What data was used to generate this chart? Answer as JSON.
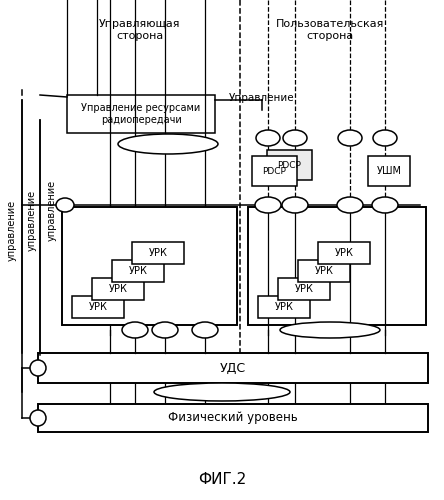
{
  "title": "ФИГ.2",
  "label_upravl_storona": "Управляющая\nсторона",
  "label_polz_storona": "Пользовательская\nсторона",
  "label_upravlenie_far_left": "управление",
  "label_upravlenie_left": "управление",
  "label_upravlenie_inner": "управление",
  "label_upravlenie_top": "Управление",
  "label_urr": "Управление ресурсами\nрадиопередачи",
  "label_uds": "УДС",
  "label_fiz": "Физический уровень",
  "label_urk": "УРК",
  "label_pdcp1": "PDCP",
  "label_pdcp2": "PDCP",
  "label_ushm": "УШМ",
  "bg_color": "#ffffff"
}
